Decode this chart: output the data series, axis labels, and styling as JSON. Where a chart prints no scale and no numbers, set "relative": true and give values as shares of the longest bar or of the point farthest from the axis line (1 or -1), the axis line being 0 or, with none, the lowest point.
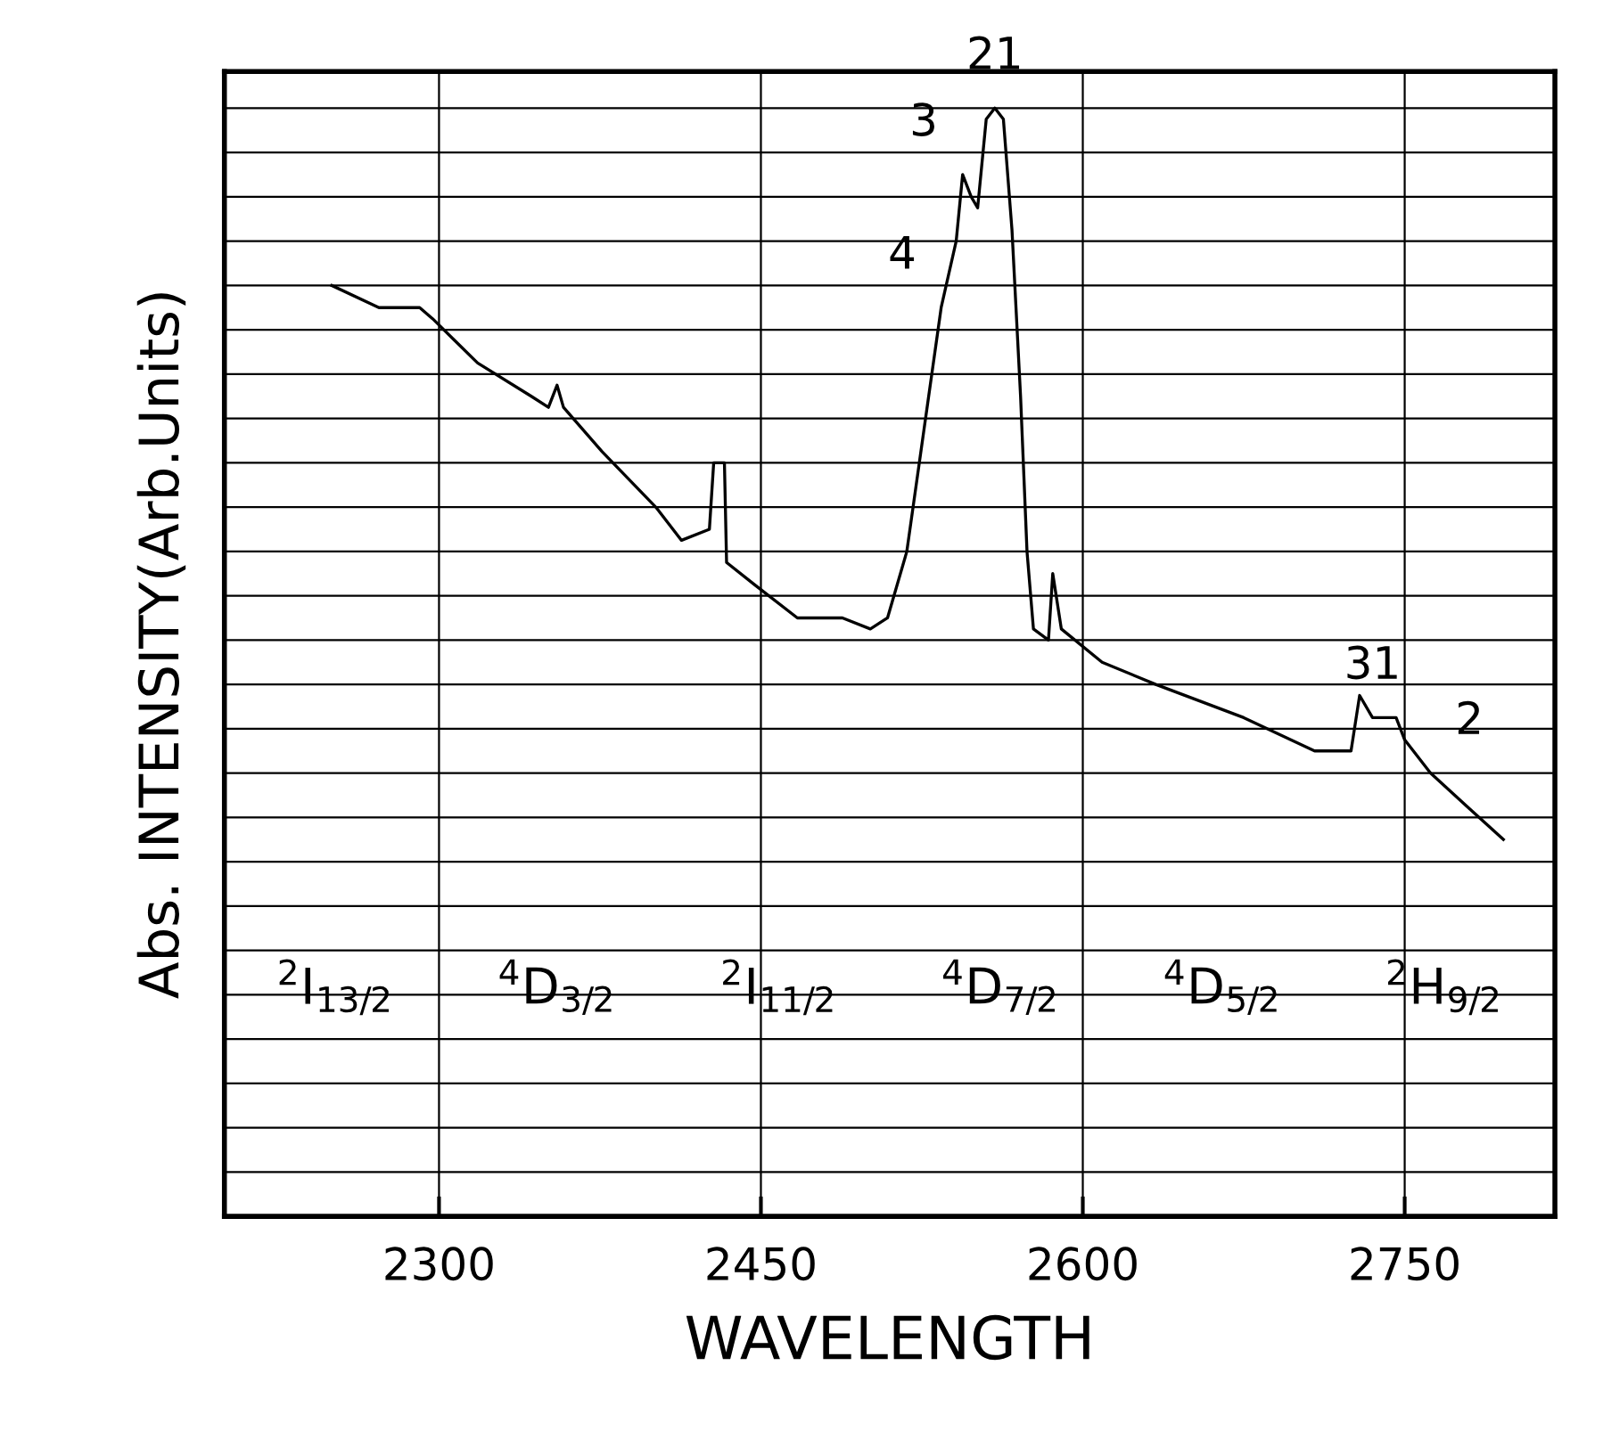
{
  "chart_data": {
    "type": "line",
    "relative": true,
    "xlabel": "WAVELENGTH",
    "ylabel": "Abs. INTENSITY(Arb.Units)",
    "xlim": [
      2200,
      2820
    ],
    "xticks": [
      2300,
      2450,
      2600,
      2750
    ],
    "grid": true,
    "tick_labels": "x",
    "series": [
      {
        "color": "#000000",
        "x": [
          2250,
          2272,
          2291,
          2297,
          2318,
          2343,
          2351,
          2355,
          2358,
          2376,
          2401,
          2413,
          2426,
          2428,
          2433,
          2434,
          2447,
          2467,
          2488,
          2501,
          2509,
          2518,
          2526,
          2534,
          2541,
          2544,
          2548,
          2551,
          2555,
          2559,
          2563,
          2567,
          2571,
          2574,
          2577,
          2584,
          2586,
          2590,
          2609,
          2634,
          2675,
          2708,
          2725,
          2729,
          2735,
          2746,
          2750,
          2762,
          2779,
          2796
        ],
        "values": [
          0.84,
          0.82,
          0.82,
          0.81,
          0.77,
          0.74,
          0.73,
          0.75,
          0.73,
          0.69,
          0.64,
          0.61,
          0.62,
          0.68,
          0.68,
          0.59,
          0.57,
          0.54,
          0.54,
          0.53,
          0.54,
          0.6,
          0.71,
          0.82,
          0.88,
          0.94,
          0.92,
          0.91,
          0.99,
          1.0,
          0.99,
          0.89,
          0.74,
          0.6,
          0.53,
          0.52,
          0.58,
          0.53,
          0.5,
          0.48,
          0.45,
          0.42,
          0.42,
          0.47,
          0.45,
          0.45,
          0.43,
          0.4,
          0.37,
          0.34
        ]
      }
    ],
    "annotations": [
      "$^{2}$I$_{13/2}$",
      "$^{4}$D$_{3/2}$",
      "$^{2}$I$_{11/2}$",
      "$^{4}$D$_{7/2}$",
      "$^{4}$D$_{5/2}$",
      "$^{2}$H$_{9/2}$",
      {
        "text": "21",
        "x": 2559,
        "y": 1.0
      },
      {
        "text": "3",
        "x": 2544,
        "y": 0.94
      },
      {
        "text": "4",
        "x": 2534,
        "y": 0.82
      },
      {
        "text": "31",
        "x": 2735,
        "y": 0.45
      },
      {
        "text": "2",
        "x": 2762,
        "y": 0.4
      }
    ]
  }
}
